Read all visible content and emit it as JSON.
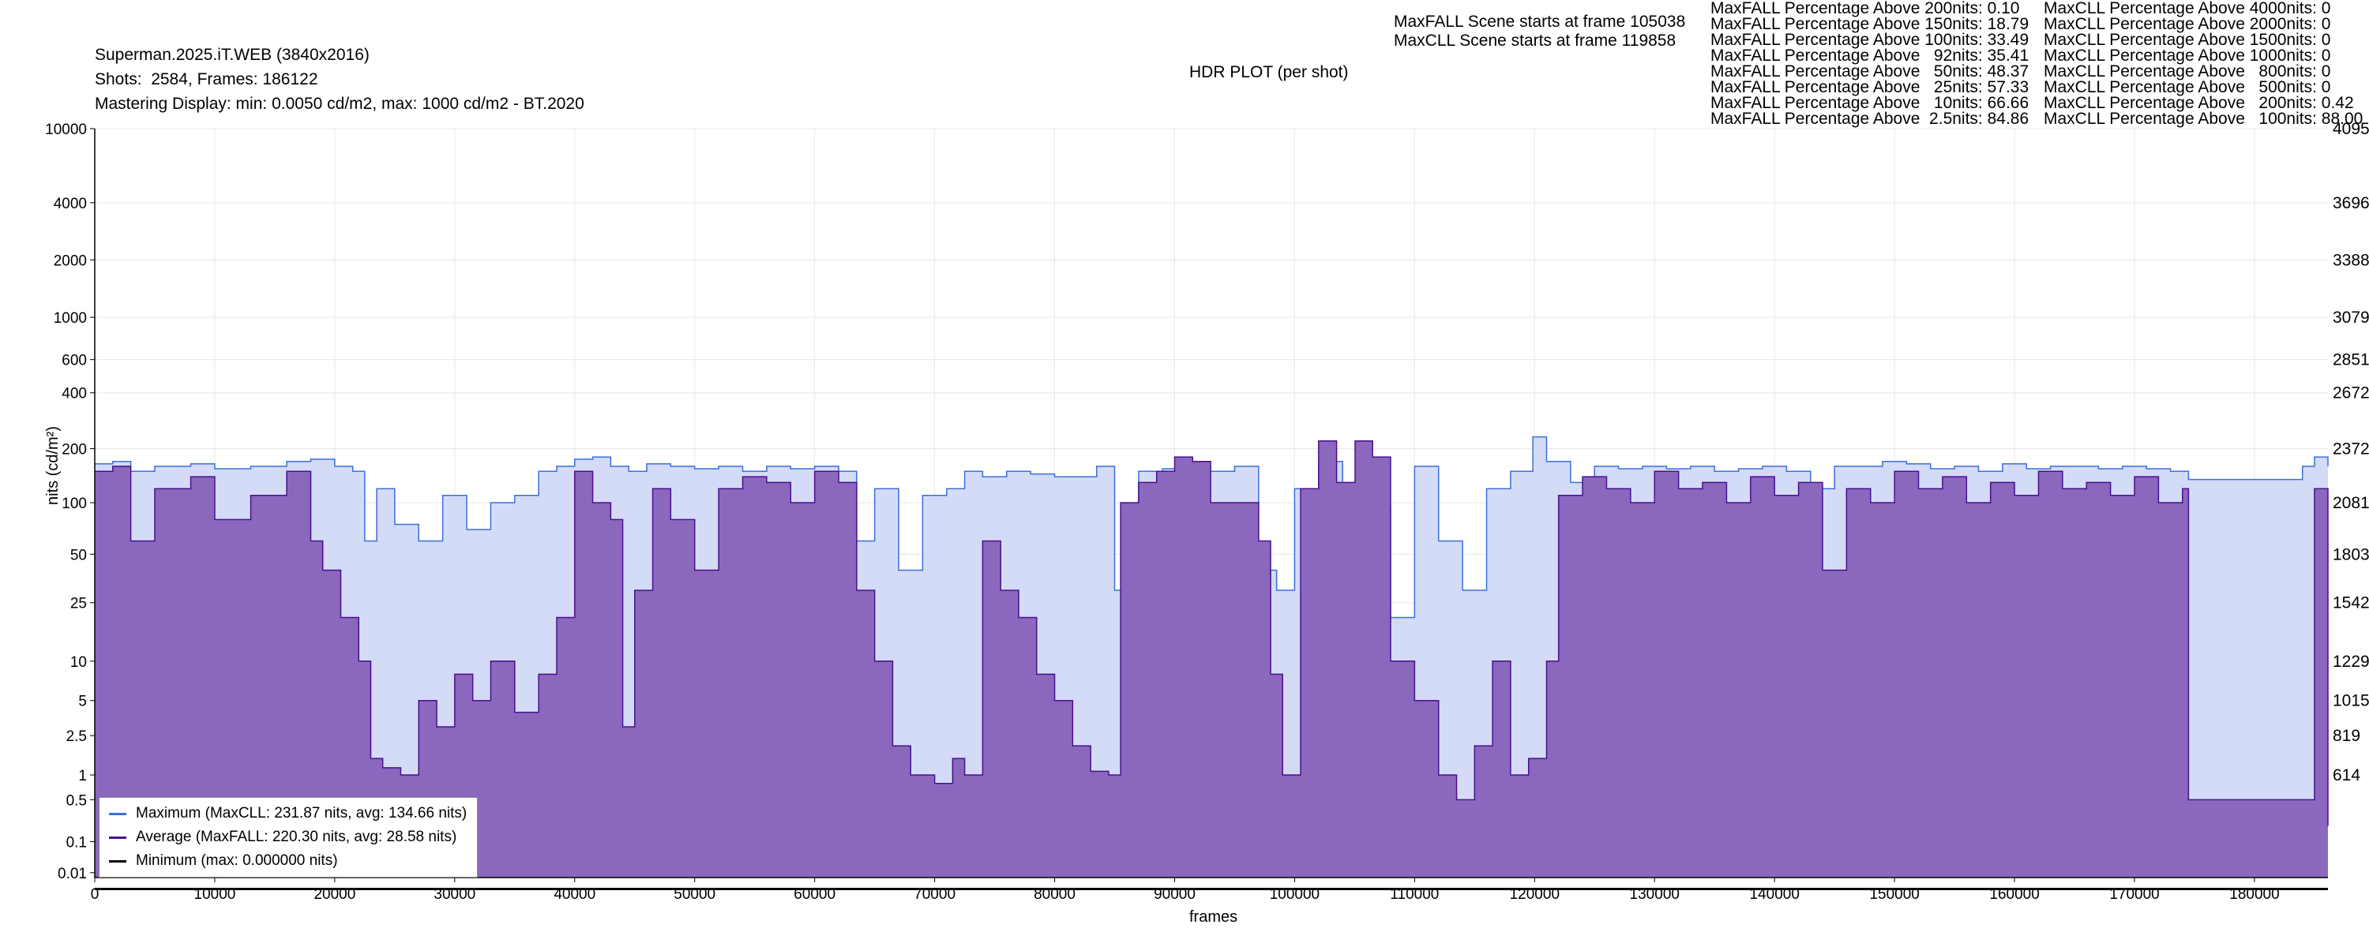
{
  "header": {
    "title": "Superman.2025.iT.WEB (3840x2016)",
    "shots": "Shots:  2584, Frames: 186122",
    "mastering": "Mastering Display: min: 0.0050 cd/m2, max: 1000 cd/m2 - BT.2020",
    "plot_title": "HDR PLOT (per shot)",
    "maxfall_scene": "MaxFALL Scene starts at frame 105038",
    "maxcll_scene": "MaxCLL Scene starts at frame 119858"
  },
  "stats": {
    "maxfall": [
      "MaxFALL Percentage Above 200nits: 0.10",
      "MaxFALL Percentage Above 150nits: 18.79",
      "MaxFALL Percentage Above 100nits: 33.49",
      "MaxFALL Percentage Above   92nits: 35.41",
      "MaxFALL Percentage Above   50nits: 48.37",
      "MaxFALL Percentage Above   25nits: 57.33",
      "MaxFALL Percentage Above   10nits: 66.66",
      "MaxFALL Percentage Above  2.5nits: 84.86"
    ],
    "maxcll": [
      "MaxCLL Percentage Above 4000nits: 0",
      "MaxCLL Percentage Above 2000nits: 0",
      "MaxCLL Percentage Above 1500nits: 0",
      "MaxCLL Percentage Above 1000nits: 0",
      "MaxCLL Percentage Above   800nits: 0",
      "MaxCLL Percentage Above   500nits: 0",
      "MaxCLL Percentage Above   200nits: 0.42",
      "MaxCLL Percentage Above   100nits: 88.00"
    ]
  },
  "legend": {
    "maximum": "Maximum (MaxCLL: 231.87 nits, avg: 134.66 nits)",
    "average": "Average (MaxFALL: 220.30 nits, avg: 28.58 nits)",
    "minimum": "Minimum (max: 0.000000 nits)"
  },
  "colors": {
    "maximum_line": "#3c6fd8",
    "maximum_fill": "#d3dbf7",
    "average_line": "#4a0f8c",
    "average_fill": "#8b68be",
    "minimum_line": "#000000",
    "grid": "#e6e6e6"
  },
  "chart_data": {
    "type": "area",
    "xlabel": "frames",
    "ylabel": "nits (cd/m²)",
    "xlim": [
      0,
      186122
    ],
    "ylim": [
      0.005,
      10000
    ],
    "y_scale": "pq",
    "grid": true,
    "legend_position": "bottom-left",
    "x_ticks": [
      0,
      10000,
      20000,
      30000,
      40000,
      50000,
      60000,
      70000,
      80000,
      90000,
      100000,
      110000,
      120000,
      130000,
      140000,
      150000,
      160000,
      170000,
      180000
    ],
    "y_ticks": [
      0.01,
      0.1,
      0.5,
      1,
      2.5,
      5,
      10,
      25,
      50,
      100,
      200,
      400,
      600,
      1000,
      2000,
      4000,
      10000
    ],
    "y_tick_labels": [
      "0.01",
      "0.1",
      "0.5",
      "1",
      "2.5",
      "5",
      "10",
      "25",
      "50",
      "100",
      "200",
      "400",
      "600",
      "1000",
      "2000",
      "4000",
      "10000"
    ],
    "right_ticks": [
      {
        "nits": 10000,
        "label": "4095"
      },
      {
        "nits": 4000,
        "label": "3696"
      },
      {
        "nits": 2000,
        "label": "3388"
      },
      {
        "nits": 1000,
        "label": "3079"
      },
      {
        "nits": 600,
        "label": "2851"
      },
      {
        "nits": 400,
        "label": "2672"
      },
      {
        "nits": 200,
        "label": "2372"
      },
      {
        "nits": 100,
        "label": "2081"
      },
      {
        "nits": 50,
        "label": "1803"
      },
      {
        "nits": 25,
        "label": "1542"
      },
      {
        "nits": 10,
        "label": "1229"
      },
      {
        "nits": 5,
        "label": "1015"
      },
      {
        "nits": 2.5,
        "label": "819"
      },
      {
        "nits": 1,
        "label": "614"
      }
    ],
    "series": [
      {
        "name": "Maximum",
        "x": [
          0,
          1500,
          3000,
          5000,
          8000,
          10000,
          13000,
          16000,
          18000,
          20000,
          21500,
          22500,
          23500,
          25000,
          27000,
          29000,
          31000,
          33000,
          35000,
          37000,
          38500,
          40000,
          41500,
          43000,
          44500,
          46000,
          48000,
          50000,
          52000,
          54000,
          56000,
          58000,
          60000,
          62000,
          63500,
          65000,
          67000,
          69000,
          71000,
          72500,
          74000,
          76000,
          78000,
          80000,
          82000,
          83500,
          85000,
          87000,
          89000,
          91000,
          93000,
          95000,
          97000,
          98500,
          100000,
          102000,
          104000,
          106000,
          108000,
          110000,
          112000,
          114000,
          116000,
          118000,
          119858,
          121000,
          123000,
          125000,
          127000,
          129000,
          131000,
          133000,
          135000,
          137000,
          139000,
          141000,
          143000,
          145000,
          147000,
          149000,
          151000,
          153000,
          155000,
          157000,
          159000,
          161000,
          163000,
          165000,
          167000,
          169000,
          171000,
          173000,
          174500,
          176000,
          178000,
          180000,
          182000,
          184000,
          185000,
          186122
        ],
        "values": [
          165,
          170,
          150,
          160,
          165,
          155,
          160,
          170,
          175,
          160,
          150,
          60,
          120,
          75,
          60,
          110,
          70,
          100,
          110,
          150,
          160,
          175,
          180,
          160,
          150,
          165,
          160,
          155,
          160,
          150,
          160,
          155,
          160,
          150,
          60,
          120,
          40,
          110,
          120,
          150,
          140,
          150,
          145,
          140,
          140,
          160,
          30,
          150,
          155,
          160,
          150,
          160,
          40,
          30,
          120,
          170,
          110,
          95,
          20,
          160,
          60,
          30,
          120,
          150,
          231.87,
          170,
          130,
          160,
          155,
          160,
          155,
          160,
          150,
          155,
          160,
          150,
          120,
          160,
          160,
          170,
          165,
          155,
          160,
          150,
          165,
          155,
          160,
          160,
          155,
          160,
          155,
          150,
          135,
          135,
          135,
          135,
          135,
          160,
          180,
          160
        ]
      },
      {
        "name": "Average",
        "x": [
          0,
          1500,
          3000,
          5000,
          8000,
          10000,
          13000,
          16000,
          18000,
          19000,
          20500,
          22000,
          23000,
          24000,
          25500,
          27000,
          28500,
          30000,
          31500,
          33000,
          35000,
          37000,
          38500,
          40000,
          41500,
          43000,
          44000,
          45000,
          46500,
          48000,
          50000,
          52000,
          54000,
          56000,
          58000,
          60000,
          62000,
          63500,
          65000,
          66500,
          68000,
          70000,
          71500,
          72500,
          74000,
          75500,
          77000,
          78500,
          80000,
          81500,
          83000,
          84500,
          85500,
          87000,
          88500,
          90000,
          91500,
          93000,
          95000,
          97000,
          98000,
          99000,
          100500,
          102000,
          103500,
          105038,
          106500,
          108000,
          110000,
          112000,
          113500,
          115000,
          116500,
          118000,
          119500,
          121000,
          122000,
          124000,
          126000,
          128000,
          130000,
          132000,
          134000,
          136000,
          138000,
          140000,
          142000,
          144000,
          146000,
          148000,
          150000,
          152000,
          154000,
          156000,
          158000,
          160000,
          162000,
          164000,
          166000,
          168000,
          170000,
          172000,
          174000,
          174500,
          176000,
          178000,
          180000,
          182000,
          184000,
          185000,
          186122
        ],
        "values": [
          150,
          160,
          60,
          120,
          140,
          80,
          110,
          150,
          60,
          40,
          20,
          10,
          1.5,
          1.2,
          1,
          5,
          3,
          8,
          5,
          10,
          4,
          8,
          20,
          150,
          100,
          80,
          3,
          30,
          120,
          80,
          40,
          120,
          140,
          130,
          100,
          150,
          130,
          30,
          10,
          2,
          1,
          0.8,
          1.5,
          1,
          60,
          30,
          20,
          8,
          5,
          2,
          1.1,
          1,
          100,
          130,
          150,
          180,
          170,
          100,
          100,
          60,
          8,
          1,
          120,
          220.3,
          130,
          220.3,
          180,
          10,
          5,
          1,
          0.5,
          2,
          10,
          1,
          1.5,
          10,
          110,
          140,
          120,
          100,
          150,
          120,
          130,
          100,
          140,
          110,
          130,
          40,
          120,
          100,
          150,
          120,
          140,
          100,
          130,
          110,
          150,
          120,
          130,
          110,
          140,
          100,
          120,
          0.5,
          0.5,
          0.5,
          0.5,
          0.5,
          0.5,
          120,
          0.2
        ]
      },
      {
        "name": "Minimum",
        "x": [
          0,
          186122
        ],
        "values": [
          0.0,
          0.0
        ]
      }
    ]
  }
}
